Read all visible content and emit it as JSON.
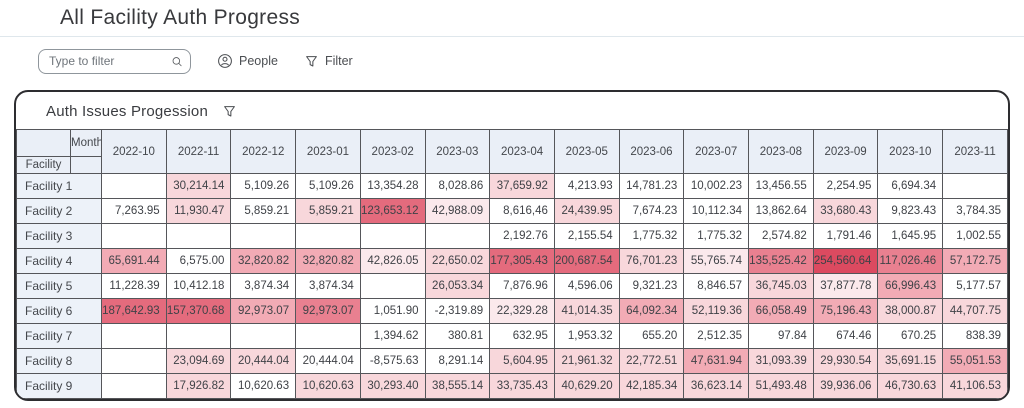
{
  "page": {
    "title": "All Facility Auth Progress"
  },
  "toolbar": {
    "search_placeholder": "Type to filter",
    "people_label": "People",
    "filter_label": "Filter"
  },
  "card": {
    "title": "Auth Issues Progession"
  },
  "icons": {
    "search": "search-icon",
    "people": "person-circle-icon",
    "filter": "funnel-icon",
    "card_filter": "funnel-icon"
  },
  "table": {
    "corner": {
      "month_label": "Month",
      "facility_label": "Facility"
    },
    "months": [
      "2022-10",
      "2022-11",
      "2022-12",
      "2023-01",
      "2023-02",
      "2023-03",
      "2023-04",
      "2023-05",
      "2023-06",
      "2023-07",
      "2023-08",
      "2023-09",
      "2023-10",
      "2023-11"
    ],
    "heat_palette": [
      "#ffffff",
      "#fbe9ec",
      "#f8d7db",
      "#f2abb5",
      "#e98090",
      "#e46b7d",
      "#dc4a60"
    ],
    "rows": [
      {
        "label": "Facility 1",
        "values": [
          "",
          "30,214.14",
          "5,109.26",
          "5,109.26",
          "13,354.28",
          "8,028.86",
          "37,659.92",
          "4,213.93",
          "14,781.23",
          "10,002.23",
          "13,456.55",
          "2,254.95",
          "6,694.34",
          ""
        ],
        "heat": [
          0,
          2,
          0,
          0,
          0,
          0,
          2,
          0,
          0,
          0,
          0,
          0,
          0,
          0
        ]
      },
      {
        "label": "Facility 2",
        "values": [
          "7,263.95",
          "11,930.47",
          "5,859.21",
          "5,859.21",
          "123,653.12",
          "42,988.09",
          "8,616,46",
          "24,439.95",
          "7,674.23",
          "10,112.34",
          "13,862.64",
          "33,680.43",
          "9,823.43",
          "3,784.35"
        ],
        "heat": [
          0,
          2,
          0,
          2,
          5,
          1,
          0,
          2,
          0,
          0,
          0,
          2,
          0,
          0
        ]
      },
      {
        "label": "Facility 3",
        "values": [
          "",
          "",
          "",
          "",
          "",
          "",
          "2,192.76",
          "2,155.54",
          "1,775.32",
          "1,775.32",
          "2,574.82",
          "1,791.46",
          "1,645.95",
          "1,002.55"
        ],
        "heat": [
          0,
          0,
          0,
          0,
          0,
          0,
          0,
          0,
          0,
          0,
          0,
          0,
          0,
          0
        ]
      },
      {
        "label": "Facility 4",
        "values": [
          "65,691.44",
          "6,575.00",
          "32,820.82",
          "32,820.82",
          "42,826.05",
          "22,650.02",
          "177,305.43",
          "200,687.54",
          "76,701.23",
          "55,765.74",
          "135,525.42",
          "254,560.64",
          "117,026.46",
          "57,172.75"
        ],
        "heat": [
          3,
          0,
          3,
          3,
          1,
          2,
          5,
          5,
          2,
          1,
          4,
          6,
          4,
          3
        ]
      },
      {
        "label": "Facility 5",
        "values": [
          "11,228.39",
          "10,412.18",
          "3,874.34",
          "3,874.34",
          "",
          "26,053.34",
          "7,876.96",
          "4,596.06",
          "9,321.23",
          "8,846.57",
          "36,745.03",
          "37,877.78",
          "66,996.43",
          "5,177.57"
        ],
        "heat": [
          0,
          0,
          0,
          0,
          0,
          2,
          0,
          0,
          0,
          0,
          2,
          1,
          3,
          0
        ]
      },
      {
        "label": "Facility 6",
        "values": [
          "187,642.93",
          "157,370.68",
          "92,973.07",
          "92,973.07",
          "1,051.90",
          "-2,319.89",
          "22,329.28",
          "41,014.35",
          "64,092.34",
          "52,119.36",
          "66,058.49",
          "75,196.43",
          "38,000.87",
          "44,707.75"
        ],
        "heat": [
          5,
          5,
          3,
          4,
          0,
          0,
          1,
          2,
          3,
          2,
          3,
          3,
          2,
          2
        ]
      },
      {
        "label": "Facility 7",
        "values": [
          "",
          "",
          "",
          "",
          "1,394.62",
          "380.81",
          "632.95",
          "1,953.32",
          "655.20",
          "2,512.35",
          "97.84",
          "674.46",
          "670.25",
          "838.39"
        ],
        "heat": [
          0,
          0,
          0,
          0,
          0,
          0,
          0,
          0,
          0,
          0,
          0,
          0,
          0,
          0
        ]
      },
      {
        "label": "Facility 8",
        "values": [
          "",
          "23,094.69",
          "20,444.04",
          "20,444.04",
          "-8,575.63",
          "8,291.14",
          "5,604.95",
          "21,961.32",
          "22,772.51",
          "47,631.94",
          "31,093.39",
          "29,930.54",
          "35,691.15",
          "55,051.53"
        ],
        "heat": [
          0,
          2,
          2,
          0,
          0,
          0,
          2,
          2,
          2,
          3,
          2,
          2,
          2,
          3
        ]
      },
      {
        "label": "Facility 9",
        "values": [
          "",
          "17,926.82",
          "10,620.63",
          "10,620.63",
          "30,293.40",
          "38,555.14",
          "33,735.43",
          "40,629.20",
          "42,185.34",
          "36,623.14",
          "51,493.48",
          "39,936.06",
          "46,730.63",
          "41,106.53"
        ],
        "heat": [
          0,
          2,
          0,
          2,
          2,
          2,
          2,
          2,
          2,
          2,
          2,
          2,
          2,
          2
        ]
      }
    ]
  }
}
